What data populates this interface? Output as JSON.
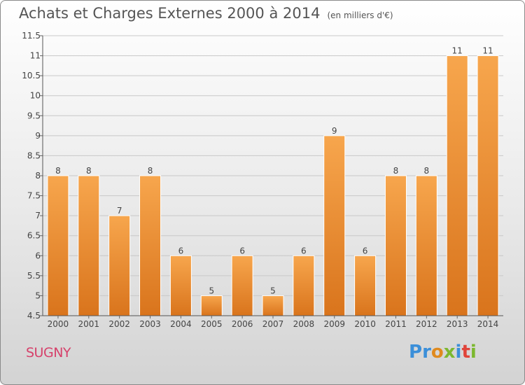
{
  "header": {
    "title": "Achats et Charges Externes 2000 à 2014",
    "unit": "(en milliers d'€)"
  },
  "footer": {
    "place": "SUGNY",
    "brand_letters": [
      {
        "ch": "P",
        "color": "#3b8fd9"
      },
      {
        "ch": "r",
        "color": "#3b8fd9"
      },
      {
        "ch": "o",
        "color": "#e08a1e"
      },
      {
        "ch": "x",
        "color": "#7cb82f"
      },
      {
        "ch": "i",
        "color": "#3b8fd9"
      },
      {
        "ch": "t",
        "color": "#e0443a"
      },
      {
        "ch": "i",
        "color": "#7cb82f"
      }
    ]
  },
  "colors": {
    "bar_top": "#f7a64d",
    "bar_bottom": "#d9741c",
    "grid": "#c8c8c8"
  },
  "chart_data": {
    "type": "bar",
    "title": "Achats et Charges Externes 2000 à 2014",
    "xlabel": "",
    "ylabel": "",
    "categories": [
      "2000",
      "2001",
      "2002",
      "2003",
      "2004",
      "2005",
      "2006",
      "2007",
      "2008",
      "2009",
      "2010",
      "2011",
      "2012",
      "2013",
      "2014"
    ],
    "values": [
      8,
      8,
      7,
      8,
      6,
      5,
      6,
      5,
      6,
      9,
      6,
      8,
      8,
      11,
      11
    ],
    "ylim": [
      4.5,
      11.5
    ],
    "yticks": [
      "4.5",
      "5",
      "5.5",
      "6",
      "6.5",
      "7",
      "7.5",
      "8",
      "8.5",
      "9",
      "9.5",
      "10",
      "10.5",
      "11",
      "11.5"
    ],
    "grid": true
  }
}
